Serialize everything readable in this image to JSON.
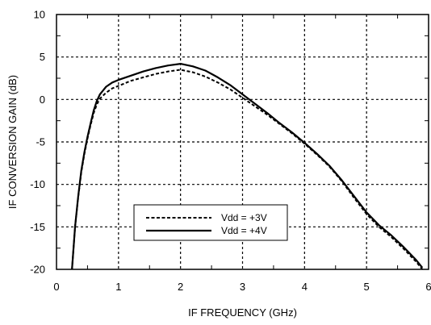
{
  "chart_data": {
    "type": "line",
    "title": "",
    "xlabel": "IF FREQUENCY (GHz)",
    "ylabel": "IF CONVERSION GAIN (dB)",
    "xlim": [
      0,
      6
    ],
    "ylim": [
      -20,
      10
    ],
    "xticks": [
      0,
      1,
      2,
      3,
      4,
      5,
      6
    ],
    "xtick_labels": [
      "0",
      "1",
      "2",
      "3",
      "4",
      "5",
      "6"
    ],
    "yticks": [
      10,
      5,
      0,
      -5,
      -10,
      -15,
      -20
    ],
    "ytick_labels": [
      "10",
      "5",
      "0",
      "-5",
      "-10",
      "-15",
      "-20"
    ],
    "grid": true,
    "legend_position": "bottom-center",
    "series": [
      {
        "name": "Vdd = +3V",
        "style": "dashed",
        "color": "#000000",
        "x": [
          0.25,
          0.3,
          0.35,
          0.4,
          0.45,
          0.5,
          0.55,
          0.6,
          0.65,
          0.7,
          0.8,
          0.9,
          1.0,
          1.2,
          1.4,
          1.6,
          1.8,
          2.0,
          2.2,
          2.4,
          2.6,
          2.8,
          3.0,
          3.2,
          3.4,
          3.6,
          3.8,
          4.0,
          4.2,
          4.4,
          4.6,
          4.8,
          5.0,
          5.2,
          5.4,
          5.6,
          5.8,
          5.9
        ],
        "y": [
          -20.0,
          -15.0,
          -11.5,
          -8.6,
          -6.4,
          -4.6,
          -3.0,
          -1.6,
          -0.6,
          0.1,
          0.8,
          1.3,
          1.6,
          2.2,
          2.6,
          3.0,
          3.3,
          3.5,
          3.2,
          2.7,
          2.0,
          1.2,
          0.2,
          -0.8,
          -1.8,
          -2.9,
          -4.0,
          -5.2,
          -6.5,
          -7.9,
          -9.6,
          -11.6,
          -13.5,
          -15.0,
          -16.2,
          -17.6,
          -19.1,
          -20.0
        ]
      },
      {
        "name": "Vdd = +4V",
        "style": "solid",
        "color": "#000000",
        "x": [
          0.25,
          0.3,
          0.35,
          0.4,
          0.45,
          0.5,
          0.55,
          0.6,
          0.65,
          0.7,
          0.8,
          0.9,
          1.0,
          1.2,
          1.4,
          1.6,
          1.8,
          2.0,
          2.2,
          2.4,
          2.6,
          2.8,
          3.0,
          3.2,
          3.4,
          3.6,
          3.8,
          4.0,
          4.2,
          4.4,
          4.6,
          4.8,
          5.0,
          5.2,
          5.4,
          5.6,
          5.8,
          5.9
        ],
        "y": [
          -20.0,
          -15.0,
          -11.4,
          -8.4,
          -6.2,
          -4.4,
          -2.8,
          -1.3,
          -0.2,
          0.6,
          1.5,
          2.0,
          2.3,
          2.8,
          3.3,
          3.7,
          4.0,
          4.2,
          3.9,
          3.4,
          2.6,
          1.7,
          0.6,
          -0.5,
          -1.6,
          -2.8,
          -3.9,
          -5.1,
          -6.4,
          -7.8,
          -9.5,
          -11.4,
          -13.3,
          -14.8,
          -16.0,
          -17.4,
          -18.9,
          -19.8
        ]
      }
    ]
  }
}
